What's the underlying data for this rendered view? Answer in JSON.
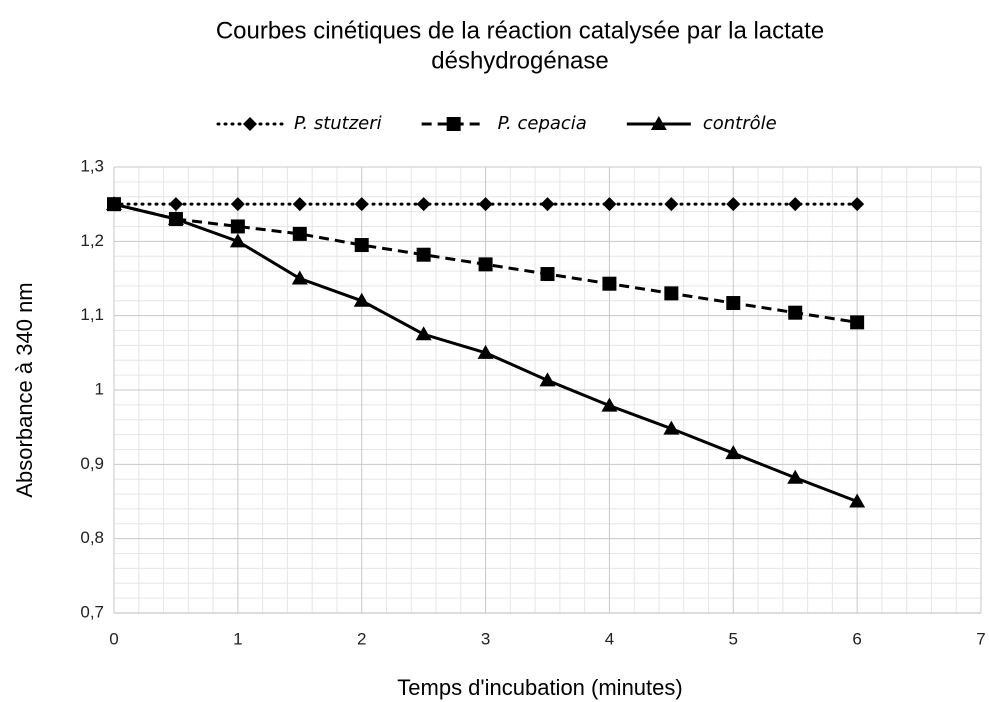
{
  "chart_data": {
    "type": "line",
    "title": [
      "Courbes cinétiques de la réaction catalysée par la lactate",
      "déshydrogénase"
    ],
    "x_label": "Temps d'incubation (minutes)",
    "y_label": "Absorbance à 340 nm",
    "x": [
      0,
      0.5,
      1,
      1.5,
      2,
      2.5,
      3,
      3.5,
      4,
      4.5,
      5,
      5.5,
      6
    ],
    "series": [
      {
        "name": "P. stutzeri",
        "color": "#000000",
        "marker": "diamond",
        "linestyle": "dotted",
        "values": [
          1.25,
          1.25,
          1.25,
          1.25,
          1.25,
          1.25,
          1.25,
          1.25,
          1.25,
          1.25,
          1.25,
          1.25,
          1.25
        ]
      },
      {
        "name": "P. cepacia",
        "color": "#000000",
        "marker": "square",
        "linestyle": "dashed",
        "values": [
          1.25,
          1.23,
          1.22,
          1.21,
          1.195,
          1.182,
          1.169,
          1.156,
          1.143,
          1.13,
          1.117,
          1.104,
          1.091
        ]
      },
      {
        "name": "contrôle",
        "color": "#000000",
        "marker": "triangle",
        "linestyle": "solid",
        "values": [
          1.25,
          1.23,
          1.2,
          1.15,
          1.12,
          1.075,
          1.05,
          1.013,
          0.979,
          0.948,
          0.915,
          0.882,
          0.85
        ]
      }
    ],
    "xlim": [
      0,
      7
    ],
    "xticks": [
      0,
      1,
      2,
      3,
      4,
      5,
      6,
      7
    ],
    "ylim": [
      0.7,
      1.3
    ],
    "yticks": [
      {
        "value": 0.7,
        "label": "0,7"
      },
      {
        "value": 0.8,
        "label": "0,8"
      },
      {
        "value": 0.9,
        "label": "0,9"
      },
      1,
      {
        "value": 1.1,
        "label": "1,1"
      },
      {
        "value": 1.2,
        "label": "1,2"
      },
      {
        "value": 1.3,
        "label": "1,3"
      }
    ],
    "grid": true,
    "minor_grid": true,
    "legend": "top"
  }
}
